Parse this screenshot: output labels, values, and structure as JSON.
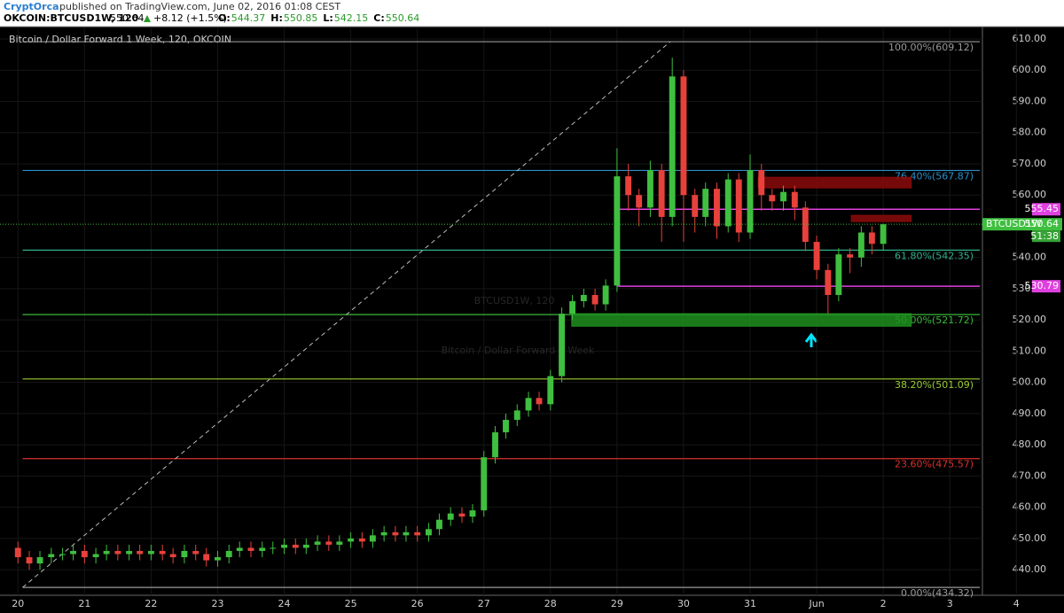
{
  "header": {
    "author": "CryptOrca",
    "published": "published on TradingView.com, June 02, 2016 01:08 CEST"
  },
  "chart_data": {
    "type": "candlestick",
    "symbol": "OKCOIN:BTCUSD1W, 120",
    "last": 550.64,
    "change": "+8.12 (+1.5%)",
    "ohlc_legend": [
      {
        "label": "O:",
        "value": 544.37
      },
      {
        "label": "H:",
        "value": 550.85
      },
      {
        "label": "L:",
        "value": 542.15
      },
      {
        "label": "C:",
        "value": 550.64
      }
    ],
    "title": "Bitcoin / Dollar Forward 1 Week, 120, OKCOIN",
    "watermark": [
      "BTCUSD1W, 120",
      "Bitcoin / Dollar Forward 1 Week"
    ],
    "up_color": "#3fbf3f",
    "down_color": "#e8413c",
    "x": [
      0,
      0.17,
      0.33,
      0.5,
      0.67,
      0.83,
      1,
      1.17,
      1.33,
      1.5,
      1.67,
      1.83,
      2,
      2.17,
      2.33,
      2.5,
      2.67,
      2.83,
      3,
      3.17,
      3.33,
      3.5,
      3.67,
      3.83,
      4,
      4.17,
      4.33,
      4.5,
      4.67,
      4.83,
      5,
      5.17,
      5.33,
      5.5,
      5.67,
      5.83,
      6,
      6.17,
      6.33,
      6.5,
      6.67,
      6.83,
      7,
      7.17,
      7.33,
      7.5,
      7.67,
      7.83,
      8,
      8.17,
      8.33,
      8.5,
      8.67,
      8.83,
      9,
      9.17,
      9.33,
      9.5,
      9.67,
      9.83,
      10,
      10.17,
      10.33,
      10.5,
      10.67,
      10.83,
      11,
      11.17,
      11.33,
      11.5,
      11.67,
      11.83,
      12,
      12.17,
      12.33,
      12.5,
      12.67,
      12.83,
      13
    ],
    "open": [
      447,
      444,
      442,
      444,
      445,
      445,
      446,
      444,
      445,
      446,
      445,
      446,
      445,
      446,
      445,
      444,
      446,
      445,
      443,
      444,
      446,
      447,
      446,
      447,
      447,
      448,
      447,
      448,
      449,
      448,
      449,
      450,
      449,
      451,
      452,
      451,
      452,
      451,
      453,
      456,
      458,
      457,
      459,
      476,
      484,
      488,
      491,
      495,
      493,
      502,
      522,
      526,
      528,
      525,
      531,
      566,
      560,
      556,
      568,
      553,
      598,
      560,
      553,
      562,
      550,
      565,
      548,
      568,
      560,
      558,
      561,
      556,
      545,
      536,
      528,
      541,
      540,
      548,
      544.37
    ],
    "high": [
      449,
      446,
      446,
      447,
      447,
      448,
      448,
      447,
      448,
      448,
      448,
      448,
      448,
      448,
      447,
      448,
      448,
      447,
      446,
      448,
      449,
      449,
      449,
      449,
      450,
      450,
      450,
      451,
      451,
      451,
      452,
      452,
      453,
      454,
      454,
      454,
      454,
      455,
      458,
      460,
      460,
      461,
      478,
      486,
      490,
      493,
      497,
      497,
      504,
      524,
      528,
      530,
      530,
      533,
      575,
      570,
      562,
      571,
      570,
      604,
      600,
      562,
      564,
      564,
      567,
      567,
      573,
      570,
      562,
      563,
      563,
      558,
      547,
      538,
      543,
      543,
      550,
      550,
      550.85
    ],
    "low": [
      442,
      440,
      440,
      442,
      443,
      443,
      442,
      442,
      443,
      443,
      443,
      443,
      443,
      443,
      442,
      442,
      443,
      441,
      441,
      442,
      444,
      444,
      444,
      445,
      445,
      445,
      445,
      446,
      446,
      446,
      447,
      447,
      447,
      449,
      449,
      449,
      449,
      449,
      451,
      454,
      455,
      455,
      457,
      474,
      482,
      486,
      489,
      491,
      491,
      500,
      520,
      524,
      523,
      523,
      529,
      555,
      550,
      553,
      545,
      550,
      545,
      548,
      550,
      546,
      548,
      545,
      546,
      555,
      555,
      555,
      552,
      542,
      533,
      522,
      526,
      535,
      537,
      541,
      542.15
    ],
    "close": [
      444,
      442,
      444,
      445,
      445,
      446,
      444,
      445,
      446,
      445,
      446,
      445,
      446,
      445,
      444,
      446,
      445,
      443,
      444,
      446,
      447,
      446,
      447,
      447,
      448,
      447,
      448,
      449,
      448,
      449,
      450,
      449,
      451,
      452,
      451,
      452,
      451,
      453,
      456,
      458,
      457,
      459,
      476,
      484,
      488,
      491,
      495,
      493,
      502,
      522,
      526,
      528,
      525,
      531,
      566,
      560,
      556,
      568,
      553,
      598,
      560,
      553,
      562,
      550,
      565,
      548,
      568,
      560,
      558,
      561,
      556,
      545,
      536,
      528,
      541,
      540,
      548,
      544.37,
      550.64
    ],
    "xlim": [
      -0.27,
      14.49
    ],
    "xticks": [
      {
        "value": 0,
        "label": "20"
      },
      {
        "value": 1,
        "label": "21"
      },
      {
        "value": 2,
        "label": "22"
      },
      {
        "value": 3,
        "label": "23"
      },
      {
        "value": 4,
        "label": "24"
      },
      {
        "value": 5,
        "label": "25"
      },
      {
        "value": 6,
        "label": "26"
      },
      {
        "value": 7,
        "label": "27"
      },
      {
        "value": 8,
        "label": "28"
      },
      {
        "value": 9,
        "label": "29"
      },
      {
        "value": 10,
        "label": "30"
      },
      {
        "value": 11,
        "label": "31"
      },
      {
        "value": 12,
        "label": "Jun"
      },
      {
        "value": 13,
        "label": "2"
      },
      {
        "value": 14,
        "label": "3"
      },
      {
        "value": 15,
        "label": "4"
      }
    ],
    "ylim": [
      431.8,
      613.4
    ],
    "yticks": [
      {
        "value": 440,
        "label": "440.00"
      },
      {
        "value": 450,
        "label": "450.00"
      },
      {
        "value": 460,
        "label": "460.00"
      },
      {
        "value": 470,
        "label": "470.00"
      },
      {
        "value": 480,
        "label": "480.00"
      },
      {
        "value": 490,
        "label": "490.00"
      },
      {
        "value": 500,
        "label": "500.00"
      },
      {
        "value": 510,
        "label": "510.00"
      },
      {
        "value": 520,
        "label": "520.00"
      },
      {
        "value": 530,
        "label": "530.00"
      },
      {
        "value": 540,
        "label": "540.00"
      },
      {
        "value": 560,
        "label": "560.00"
      },
      {
        "value": 570,
        "label": "570.00"
      },
      {
        "value": 580,
        "label": "580.00"
      },
      {
        "value": 590,
        "label": "590.00"
      },
      {
        "value": 600,
        "label": "600.00"
      },
      {
        "value": 610,
        "label": "610.00"
      }
    ],
    "fib": {
      "x": [
        0.07,
        14.45
      ],
      "trend_x": [
        0.07,
        9.8
      ],
      "levels": [
        {
          "label": "100.00%(609.12)",
          "value": 609.12,
          "color": "#9a9a9a"
        },
        {
          "label": "76.40%(567.87)",
          "value": 567.87,
          "color": "#2a8fc9"
        },
        {
          "label": "61.80%(542.35)",
          "value": 542.35,
          "color": "#2fae8a"
        },
        {
          "label": "50.00%(521.72)",
          "value": 521.72,
          "color": "#3bb83b"
        },
        {
          "label": "38.20%(501.09)",
          "value": 501.09,
          "color": "#9acd32"
        },
        {
          "label": "23.60%(475.57)",
          "value": 475.57,
          "color": "#d8322c"
        },
        {
          "label": "0.00%(434.32)",
          "value": 434.32,
          "color": "#9a9a9a"
        }
      ]
    },
    "hlines": [
      {
        "value": 555.45,
        "color": "#e040e0",
        "x": [
          9.0,
          14.45
        ]
      },
      {
        "value": 530.79,
        "color": "#e040e0",
        "x": [
          9.0,
          14.45
        ]
      }
    ],
    "zones": [
      {
        "x": [
          11.12,
          13.42
        ],
        "top": 565.7,
        "bottom": 562.3,
        "color": "#8b0a0a"
      },
      {
        "x": [
          12.52,
          13.42
        ],
        "top": 553.5,
        "bottom": 551.5,
        "color": "#8b0a0a"
      },
      {
        "x": [
          8.32,
          13.42
        ],
        "top": 522.0,
        "bottom": 518.0,
        "color": "#1f8f1f"
      }
    ],
    "price_label_name": "BTCUSD1W",
    "countdown": "51:38"
  }
}
